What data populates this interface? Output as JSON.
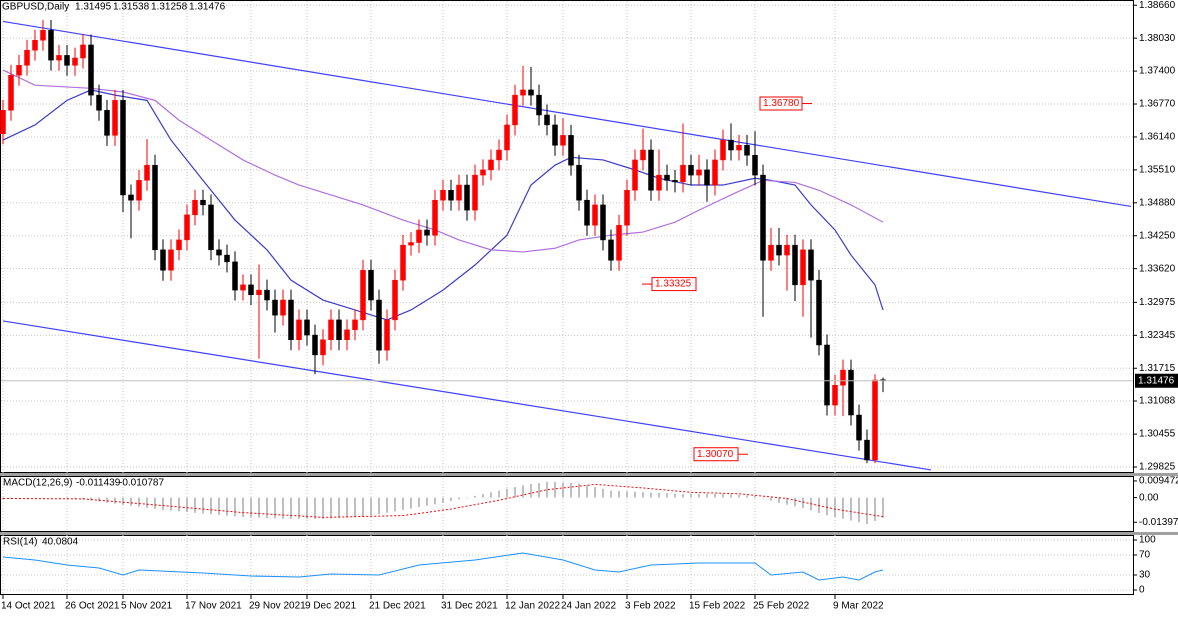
{
  "chart_data": {
    "type": "candlestick",
    "symbol": "GBPUSD,Daily",
    "categories": [
      "14 Oct 2021",
      null,
      null,
      null,
      null,
      null,
      null,
      null,
      "26 Oct 2021",
      null,
      null,
      null,
      null,
      null,
      null,
      "5 Nov 2021",
      null,
      null,
      null,
      null,
      null,
      null,
      null,
      "17 Nov 2021",
      null,
      null,
      null,
      null,
      null,
      null,
      null,
      "29 Nov 2021",
      null,
      null,
      null,
      null,
      null,
      null,
      "9 Dec 2021",
      null,
      null,
      null,
      null,
      null,
      null,
      null,
      "21 Dec 2021",
      null,
      null,
      null,
      null,
      null,
      null,
      null,
      null,
      "31 Dec 2021",
      null,
      null,
      null,
      null,
      null,
      null,
      null,
      "12 Jan 2022",
      null,
      null,
      null,
      null,
      null,
      null,
      "24 Jan 2022",
      null,
      null,
      null,
      null,
      null,
      null,
      null,
      "3 Feb 2022",
      null,
      null,
      null,
      null,
      null,
      null,
      null,
      "15 Feb 2022",
      null,
      null,
      null,
      null,
      null,
      null,
      null,
      "25 Feb 2022",
      null,
      null,
      null,
      null,
      null,
      null,
      null,
      null,
      null,
      "9 Mar 2022",
      null,
      null,
      null,
      null,
      null,
      null
    ],
    "open": [
      1.362,
      1.3665,
      1.3732,
      1.3751,
      1.378,
      1.3799,
      1.3818,
      1.3761,
      1.377,
      1.3751,
      1.3765,
      1.379,
      1.3694,
      1.3665,
      1.3617,
      1.3684,
      1.3503,
      1.3493,
      1.3531,
      1.356,
      1.3398,
      1.3359,
      1.3398,
      1.3417,
      1.3465,
      1.3493,
      1.3484,
      1.3398,
      1.3388,
      1.3375,
      1.3321,
      1.3331,
      1.3312,
      1.3321,
      1.3302,
      1.3273,
      1.3302,
      1.3226,
      1.3264,
      1.3235,
      1.3197,
      1.3226,
      1.3264,
      1.3226,
      1.3245,
      1.3264,
      1.3359,
      1.3302,
      1.3206,
      1.3264,
      1.334,
      1.3407,
      1.3412,
      1.3436,
      1.3426,
      1.3493,
      1.3512,
      1.3493,
      1.3522,
      1.3474,
      1.3541,
      1.3551,
      1.357,
      1.3589,
      1.3637,
      1.3694,
      1.3704,
      1.3694,
      1.3656,
      1.3637,
      1.3598,
      1.3617,
      1.356,
      1.3493,
      1.3445,
      1.3484,
      1.3417,
      1.3378,
      1.3445,
      1.3512,
      1.357,
      1.3589,
      1.3512,
      1.3541,
      1.3531,
      1.3528,
      1.356,
      1.3541,
      1.3551,
      1.3522,
      1.357,
      1.3608,
      1.3589,
      1.3598,
      1.3579,
      1.3541,
      1.3378,
      1.3407,
      1.3388,
      1.3407,
      1.3331,
      1.3398,
      1.334,
      1.3216,
      1.3101,
      1.3139,
      1.3168,
      1.3082,
      1.3034,
      1.2996,
      1.31495
    ],
    "high": [
      1.3685,
      1.3752,
      1.3771,
      1.38,
      1.3819,
      1.3838,
      1.3838,
      1.379,
      1.379,
      1.3785,
      1.381,
      1.381,
      1.3714,
      1.3685,
      1.3704,
      1.3704,
      1.3523,
      1.3551,
      1.361,
      1.358,
      1.3418,
      1.3418,
      1.3437,
      1.3485,
      1.3513,
      1.3513,
      1.3504,
      1.3418,
      1.3408,
      1.3395,
      1.3351,
      1.3351,
      1.337,
      1.3341,
      1.3322,
      1.3322,
      1.3322,
      1.3284,
      1.3284,
      1.3255,
      1.3246,
      1.3284,
      1.3284,
      1.3265,
      1.3284,
      1.3379,
      1.3379,
      1.3322,
      1.3284,
      1.336,
      1.3427,
      1.3432,
      1.3456,
      1.3456,
      1.3513,
      1.3532,
      1.3532,
      1.3542,
      1.3542,
      1.3561,
      1.3571,
      1.359,
      1.3609,
      1.3657,
      1.3714,
      1.375,
      1.3748,
      1.3714,
      1.3676,
      1.3657,
      1.365,
      1.3637,
      1.358,
      1.3513,
      1.3504,
      1.3504,
      1.3437,
      1.3465,
      1.3532,
      1.359,
      1.363,
      1.3609,
      1.359,
      1.3561,
      1.3551,
      1.364,
      1.358,
      1.358,
      1.3571,
      1.359,
      1.3628,
      1.364,
      1.3618,
      1.3618,
      1.3625,
      1.3561,
      1.344,
      1.344,
      1.3427,
      1.3427,
      1.3418,
      1.3418,
      1.336,
      1.3236,
      1.3159,
      1.3188,
      1.3188,
      1.3102,
      1.3054,
      1.316,
      1.31538
    ],
    "low": [
      1.36,
      1.3645,
      1.3712,
      1.3731,
      1.376,
      1.3779,
      1.3741,
      1.3741,
      1.3731,
      1.3731,
      1.3745,
      1.3674,
      1.3645,
      1.3597,
      1.3597,
      1.347,
      1.342,
      1.3473,
      1.3511,
      1.3378,
      1.3339,
      1.3339,
      1.3378,
      1.3397,
      1.3445,
      1.3464,
      1.3378,
      1.3368,
      1.3355,
      1.3301,
      1.3301,
      1.3292,
      1.319,
      1.3282,
      1.324,
      1.3253,
      1.3206,
      1.3206,
      1.3215,
      1.316,
      1.3177,
      1.3206,
      1.3206,
      1.3206,
      1.3225,
      1.3244,
      1.3282,
      1.318,
      1.3186,
      1.3244,
      1.332,
      1.3387,
      1.3392,
      1.3406,
      1.3406,
      1.3473,
      1.3473,
      1.3473,
      1.3454,
      1.3454,
      1.3521,
      1.3531,
      1.355,
      1.3569,
      1.3617,
      1.3674,
      1.3674,
      1.3636,
      1.3617,
      1.3578,
      1.3578,
      1.354,
      1.3473,
      1.3425,
      1.3425,
      1.3397,
      1.3358,
      1.3358,
      1.3425,
      1.3492,
      1.355,
      1.3492,
      1.3492,
      1.3511,
      1.3508,
      1.3508,
      1.3521,
      1.3521,
      1.349,
      1.3502,
      1.355,
      1.3569,
      1.3569,
      1.3559,
      1.3521,
      1.327,
      1.3358,
      1.3368,
      1.332,
      1.33,
      1.327,
      1.323,
      1.3196,
      1.3081,
      1.3081,
      1.308,
      1.3062,
      1.3014,
      1.299,
      1.299,
      1.31258
    ],
    "close": [
      1.3665,
      1.3732,
      1.3751,
      1.378,
      1.3799,
      1.3818,
      1.3761,
      1.377,
      1.3751,
      1.3765,
      1.379,
      1.3694,
      1.3665,
      1.3617,
      1.3684,
      1.3503,
      1.3493,
      1.3531,
      1.356,
      1.3398,
      1.3359,
      1.3398,
      1.3417,
      1.3465,
      1.3493,
      1.3484,
      1.3398,
      1.3388,
      1.3375,
      1.3321,
      1.3331,
      1.3312,
      1.3321,
      1.3302,
      1.3273,
      1.3302,
      1.3226,
      1.3264,
      1.3235,
      1.3197,
      1.3226,
      1.3264,
      1.3226,
      1.3245,
      1.3264,
      1.3359,
      1.3302,
      1.3206,
      1.3264,
      1.334,
      1.3407,
      1.3412,
      1.3436,
      1.3426,
      1.3493,
      1.3512,
      1.3493,
      1.3522,
      1.3474,
      1.3541,
      1.3551,
      1.357,
      1.3589,
      1.3637,
      1.3694,
      1.3704,
      1.3694,
      1.3656,
      1.3637,
      1.3598,
      1.3617,
      1.356,
      1.3493,
      1.3445,
      1.3484,
      1.3417,
      1.3378,
      1.3445,
      1.3512,
      1.357,
      1.3589,
      1.3512,
      1.3541,
      1.3531,
      1.3528,
      1.356,
      1.3541,
      1.3551,
      1.3522,
      1.357,
      1.3608,
      1.3589,
      1.3598,
      1.3579,
      1.3541,
      1.3378,
      1.3407,
      1.3388,
      1.3407,
      1.3331,
      1.3398,
      1.334,
      1.3216,
      1.3101,
      1.3139,
      1.3168,
      1.3082,
      1.3034,
      1.2996,
      1.3149,
      1.31476
    ],
    "up_color": "#ff0000",
    "down_color": "#000000",
    "ylim": [
      1.2973,
      1.3876
    ],
    "yticks": [
      {
        "value": 1.3866,
        "label": "1.38660"
      },
      {
        "value": 1.3803,
        "label": "1.38030"
      },
      {
        "value": 1.374,
        "label": "1.37400"
      },
      {
        "value": 1.3677,
        "label": "1.36770"
      },
      {
        "value": 1.3614,
        "label": "1.36140"
      },
      {
        "value": 1.3551,
        "label": "1.35510"
      },
      {
        "value": 1.3488,
        "label": "1.34880"
      },
      {
        "value": 1.3425,
        "label": "1.34250"
      },
      {
        "value": 1.3362,
        "label": "1.33620"
      },
      1.32975,
      1.32345,
      1.31715,
      1.31088,
      1.30455,
      1.29825
    ],
    "grid": true,
    "overlays": [
      {
        "color": "#3a3ad0",
        "x": [
          0,
          4,
          8,
          11,
          14,
          18,
          21,
          25,
          29,
          33,
          36,
          40,
          44,
          48,
          51,
          55,
          59,
          63,
          66,
          69,
          71,
          75,
          79,
          82,
          86,
          90,
          94,
          96,
          99,
          101,
          104,
          106,
          109,
          110
        ],
        "values": [
          1.3608,
          1.3637,
          1.3684,
          1.3704,
          1.3694,
          1.3684,
          1.3608,
          1.3531,
          1.3455,
          1.3398,
          1.334,
          1.3302,
          1.3283,
          1.3264,
          1.3283,
          1.3321,
          1.3369,
          1.3426,
          1.3522,
          1.356,
          1.3575,
          1.357,
          1.3551,
          1.3535,
          1.3522,
          1.3522,
          1.3535,
          1.3531,
          1.3522,
          1.3484,
          1.3436,
          1.3388,
          1.3331,
          1.3283
        ]
      },
      {
        "color": "#b070e0",
        "x": [
          0,
          4,
          11,
          15,
          19,
          22,
          26,
          30,
          34,
          37,
          41,
          45,
          50,
          54,
          57,
          61,
          65,
          69,
          72,
          76,
          80,
          84,
          87,
          91,
          95,
          99,
          102,
          106,
          110
        ],
        "values": [
          1.3742,
          1.3713,
          1.3707,
          1.37,
          1.3684,
          1.3646,
          1.3608,
          1.357,
          1.3541,
          1.3522,
          1.3503,
          1.3484,
          1.3455,
          1.3436,
          1.3417,
          1.3398,
          1.3394,
          1.3401,
          1.3417,
          1.3426,
          1.3432,
          1.3451,
          1.3474,
          1.3503,
          1.3531,
          1.3527,
          1.3512,
          1.3484,
          1.3451
        ]
      },
      {
        "color": "#4040ff",
        "x": [
          0,
          141
        ],
        "values": [
          1.3835,
          1.3481
        ]
      },
      {
        "color": "#4040ff",
        "x": [
          0,
          116
        ],
        "values": [
          1.3262,
          1.2977
        ]
      }
    ],
    "annotations": [
      {
        "value": 1.3678,
        "label": "1.36780"
      },
      {
        "value": 1.33325,
        "label": "1.33325"
      },
      {
        "value": 1.3007,
        "label": "1.30070"
      }
    ],
    "annotation_color": "#ff0000",
    "macd": {
      "label": "MACD(12,26,9)",
      "color": "#c0c0c0",
      "signal_color": "#ff0000",
      "values": [
        -0.001,
        -0.0008,
        -0.0006,
        -0.0004,
        -0.0002,
        0.0,
        -0.0002,
        -0.0004,
        -0.0006,
        -0.0008,
        -0.001,
        -0.0016,
        -0.0022,
        -0.0028,
        -0.0034,
        -0.004,
        -0.0046,
        -0.0052,
        -0.0058,
        -0.0064,
        -0.007,
        -0.0074,
        -0.0078,
        -0.0082,
        -0.0086,
        -0.009,
        -0.0094,
        -0.0098,
        -0.0102,
        -0.0106,
        -0.011,
        -0.0112,
        -0.0114,
        -0.0116,
        -0.0118,
        -0.012,
        -0.012,
        -0.012,
        -0.012,
        -0.012,
        -0.012,
        -0.0118,
        -0.0116,
        -0.0114,
        -0.0112,
        -0.011,
        -0.0102,
        -0.0094,
        -0.0086,
        -0.0078,
        -0.007,
        -0.0062,
        -0.0054,
        -0.0046,
        -0.0038,
        -0.003,
        -0.002,
        -0.001,
        0.0,
        0.001,
        0.002,
        0.003,
        0.004,
        0.005,
        0.006,
        0.007,
        0.0077,
        0.0083,
        0.009,
        0.0088,
        0.0085,
        0.0083,
        0.008,
        0.007,
        0.006,
        0.005,
        0.004,
        0.0038,
        0.0035,
        0.0033,
        0.003,
        0.0028,
        0.0026,
        0.0024,
        0.0022,
        0.002,
        0.002,
        0.002,
        0.002,
        0.002,
        0.002,
        0.0018,
        0.0015,
        0.0013,
        0.001,
        -0.0003,
        -0.0017,
        -0.003,
        -0.004,
        -0.005,
        -0.006,
        -0.0073,
        -0.0087,
        -0.01,
        -0.011,
        -0.012,
        -0.013,
        -0.014,
        -0.015,
        -0.0132,
        -0.011439
      ],
      "signal": {
        "x": [
          0,
          10,
          20,
          30,
          40,
          50,
          56,
          62,
          68,
          74,
          80,
          86,
          92,
          98,
          104,
          110
        ],
        "values": [
          -0.0005,
          -0.0007,
          -0.0045,
          -0.0085,
          -0.0112,
          -0.0102,
          -0.0065,
          -0.0015,
          0.0045,
          0.0075,
          0.0055,
          0.003,
          0.0022,
          -0.0005,
          -0.0065,
          -0.010787
        ]
      },
      "ylim": [
        -0.0195,
        0.0117
      ],
      "yticks": [
        0.009472,
        {
          "value": 0,
          "label": "0.00"
        },
        -0.01397
      ]
    },
    "rsi": {
      "label": "RSI(14)",
      "color": "#1e90ff",
      "x": [
        0,
        4,
        8,
        12,
        15,
        17,
        25,
        31,
        37,
        41,
        47,
        52,
        59,
        65,
        70,
        74,
        77,
        81,
        87,
        94,
        96,
        100,
        102,
        105,
        107,
        109,
        110
      ],
      "values": [
        66,
        60,
        50,
        44,
        30,
        40,
        34,
        28,
        26,
        32,
        30,
        50,
        60,
        74,
        60,
        40,
        36,
        50,
        54,
        54,
        30,
        36,
        20,
        26,
        20,
        36,
        40.0804
      ],
      "ylim": [
        -10,
        110
      ],
      "yticks": [
        100,
        70,
        30,
        0
      ]
    }
  }
}
